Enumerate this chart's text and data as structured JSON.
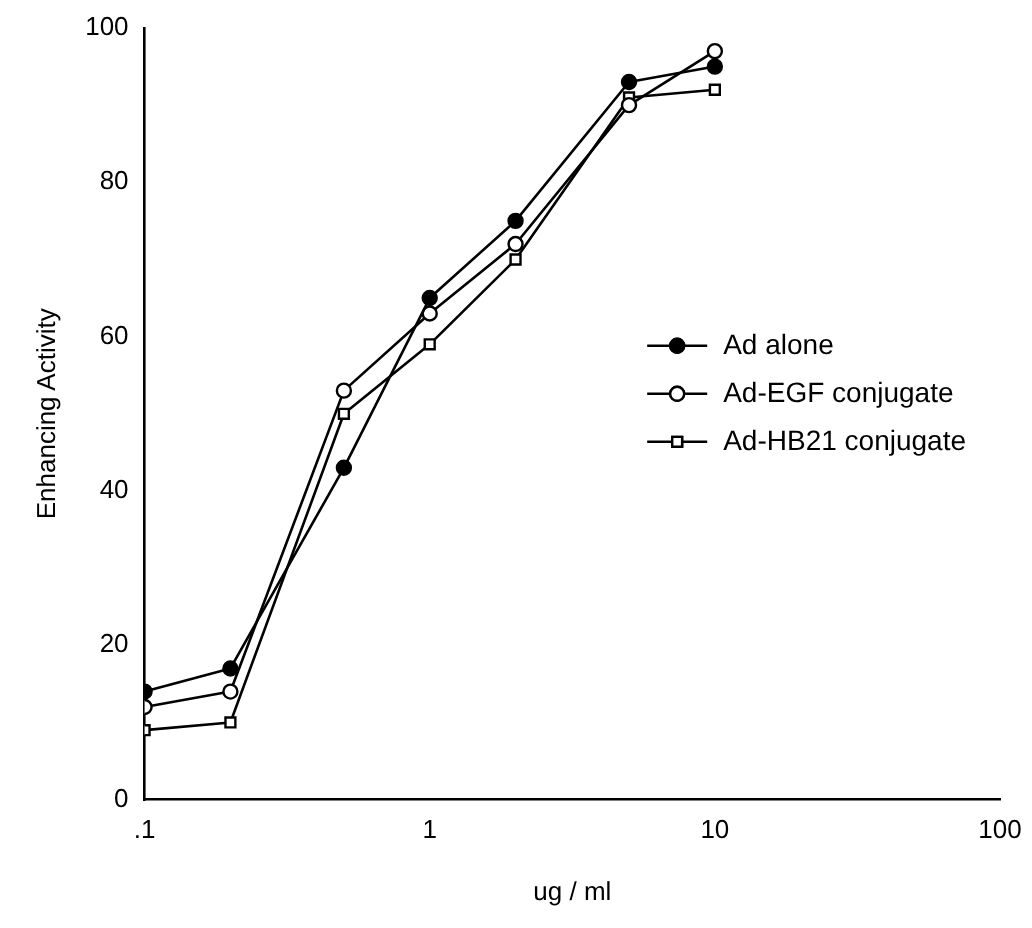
{
  "chart_data": {
    "type": "line",
    "xlabel": "ug / ml",
    "ylabel": "Enhancing Activity",
    "log": "x",
    "xlim": [
      0.1,
      100
    ],
    "xticks": [
      {
        "value": 0.1,
        "label": ".1"
      },
      1,
      10,
      100
    ],
    "ylim": [
      0,
      100
    ],
    "yticks": [
      0,
      20,
      40,
      60,
      80,
      100
    ],
    "grid": false,
    "legend": "right",
    "x": [
      0.1,
      0.2,
      0.5,
      1,
      2,
      5,
      10
    ],
    "series": [
      {
        "name": "Ad alone",
        "color": "#000000",
        "marker": "circle",
        "values": [
          14,
          17,
          43,
          65,
          75,
          93,
          95
        ]
      },
      {
        "name": "Ad-EGF conjugate",
        "color": "#000000",
        "colors": [
          "#ffffff",
          "#ffffff",
          "#ffffff",
          "#ffffff",
          "#ffffff",
          "#ffffff",
          "#ffffff"
        ],
        "marker": "circle",
        "values": [
          12,
          14,
          53,
          63,
          72,
          90,
          97
        ]
      },
      {
        "name": "Ad-HB21 conjugate",
        "color": "#000000",
        "colors": [
          "#ffffff",
          "#ffffff",
          "#ffffff",
          "#ffffff",
          "#ffffff",
          "#ffffff",
          "#ffffff"
        ],
        "marker": "square",
        "values": [
          9,
          10,
          50,
          59,
          70,
          91,
          92
        ]
      }
    ]
  }
}
